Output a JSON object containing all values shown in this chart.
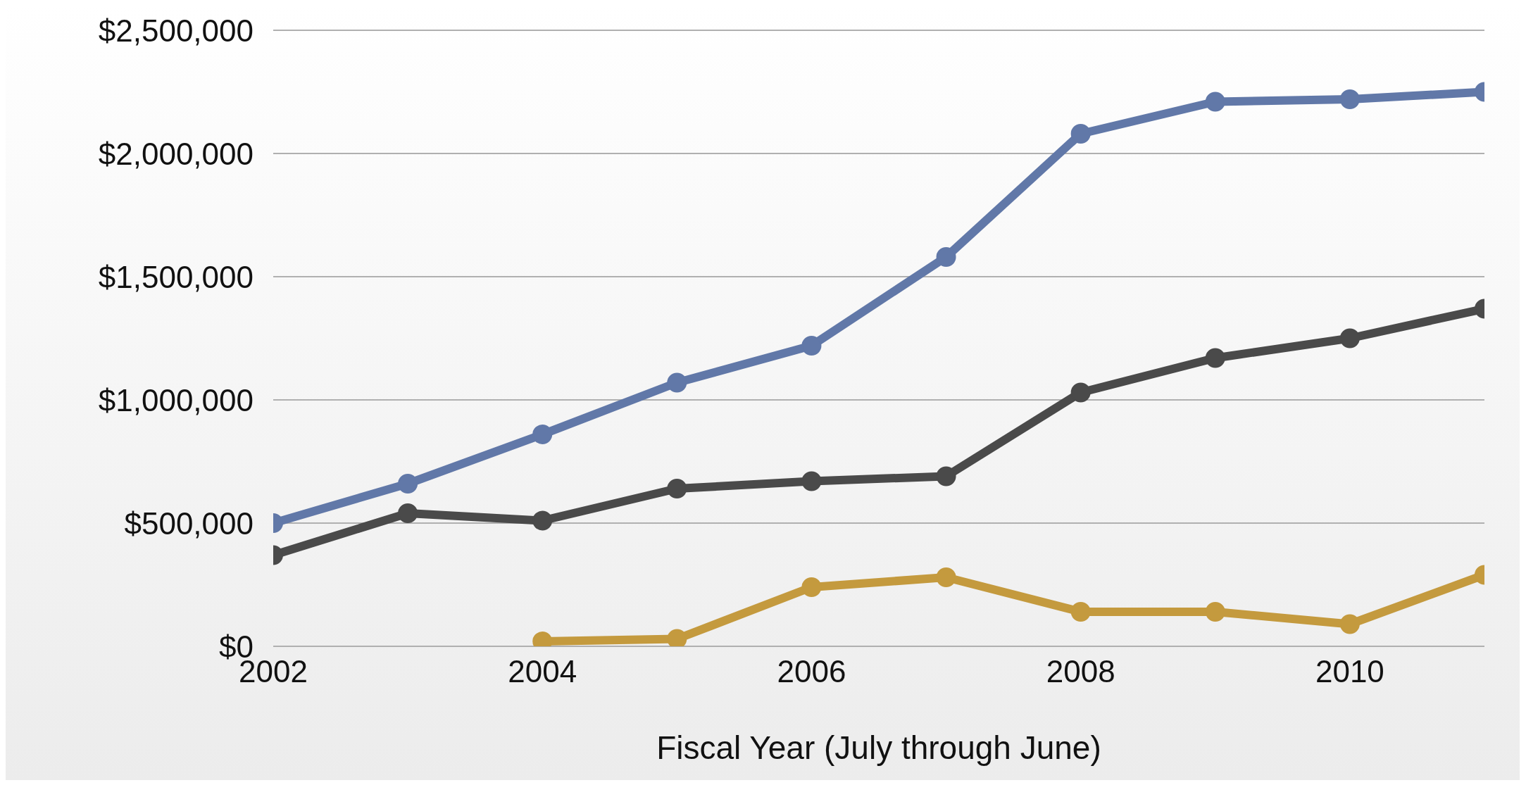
{
  "chart_data": {
    "type": "line",
    "xlabel": "Fiscal Year (July through June)",
    "x": [
      2002,
      2003,
      2004,
      2005,
      2006,
      2007,
      2008,
      2009,
      2010,
      2011
    ],
    "series": [
      {
        "color": "#6178a8",
        "values": [
          500000,
          660000,
          860000,
          1070000,
          1220000,
          1580000,
          2080000,
          2210000,
          2220000,
          2250000
        ]
      },
      {
        "color": "#4a4a4a",
        "values": [
          370000,
          540000,
          510000,
          640000,
          670000,
          690000,
          1030000,
          1170000,
          1250000,
          1370000
        ]
      },
      {
        "color": "#c49a3e",
        "values": [
          null,
          null,
          20000,
          30000,
          240000,
          280000,
          140000,
          140000,
          90000,
          290000
        ]
      }
    ],
    "xlim": [
      2002,
      2011
    ],
    "xticks": [
      2002,
      2004,
      2006,
      2008,
      2010
    ],
    "ylim": [
      0,
      2500000
    ],
    "yticks": [
      {
        "value": 0,
        "label": "$0"
      },
      {
        "value": 500000,
        "label": "$500,000"
      },
      {
        "value": 1000000,
        "label": "$1,000,000"
      },
      {
        "value": 1500000,
        "label": "$1,500,000"
      },
      {
        "value": 2000000,
        "label": "$2,000,000"
      },
      {
        "value": 2500000,
        "label": "$2,500,000"
      }
    ],
    "grid": "y",
    "legend": false,
    "marker": "circle",
    "line_style": "solid"
  }
}
